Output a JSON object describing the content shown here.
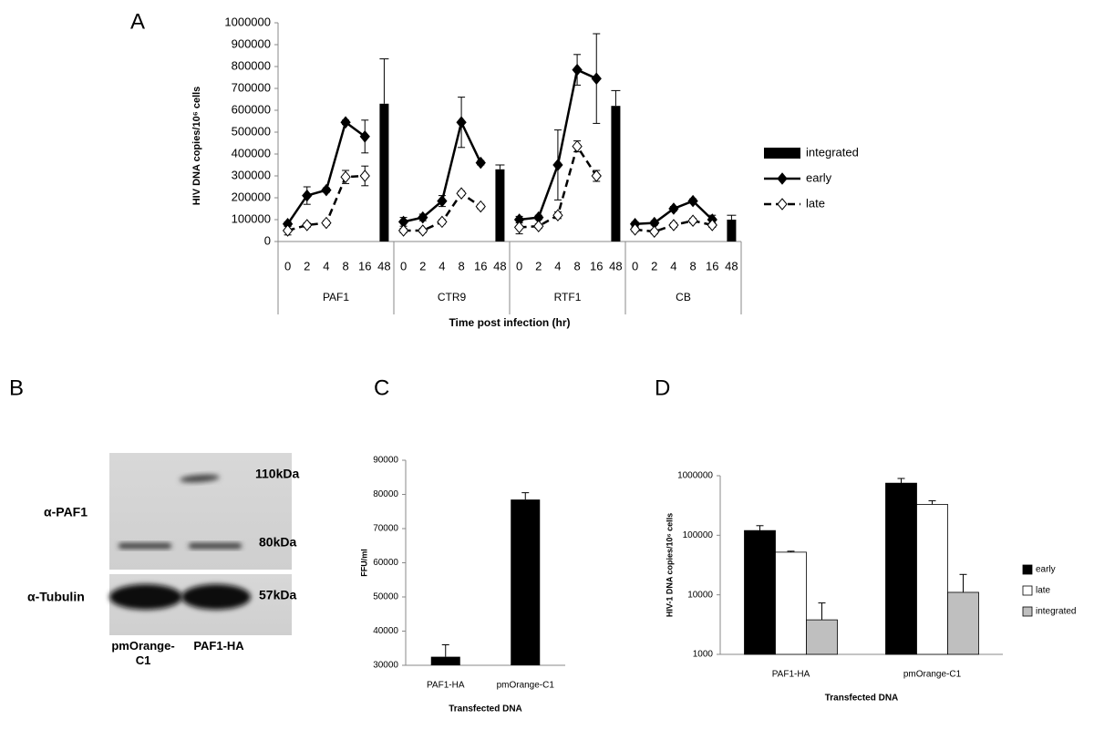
{
  "chart_data": [
    {
      "panel": "A",
      "type": "line",
      "ylabel": "HIV DNA copies/10⁶ cells",
      "xlabel": "Time post infection (hr)",
      "ylim": [
        0,
        1000000
      ],
      "yticks": [
        0,
        100000,
        200000,
        300000,
        400000,
        500000,
        600000,
        700000,
        800000,
        900000,
        1000000
      ],
      "series": [
        {
          "name": "integrated",
          "color": "#000000",
          "style": "bar"
        },
        {
          "name": "early",
          "color": "#000000",
          "style": "solid",
          "marker_fill": "#000000"
        },
        {
          "name": "late",
          "color": "#000000",
          "style": "dashed",
          "marker_fill": "#ffffff"
        }
      ],
      "groups": [
        {
          "name": "PAF1",
          "categories": [
            "0",
            "2",
            "4",
            "8",
            "16",
            "48"
          ],
          "values": [
            [
              null,
              null,
              null,
              null,
              null,
              630000
            ],
            [
              80000,
              210000,
              235000,
              545000,
              480000,
              null
            ],
            [
              50000,
              75000,
              85000,
              295000,
              300000,
              null
            ]
          ],
          "errors": [
            [
              null,
              null,
              null,
              null,
              null,
              205000
            ],
            [
              10000,
              40000,
              10000,
              10000,
              75000,
              null
            ],
            [
              20000,
              10000,
              10000,
              30000,
              45000,
              null
            ]
          ]
        },
        {
          "name": "CTR9",
          "categories": [
            "0",
            "2",
            "4",
            "8",
            "16",
            "48"
          ],
          "values": [
            [
              null,
              null,
              null,
              null,
              null,
              330000
            ],
            [
              90000,
              110000,
              185000,
              545000,
              360000,
              null
            ],
            [
              50000,
              50000,
              90000,
              220000,
              160000,
              null
            ]
          ],
          "errors": [
            [
              null,
              null,
              null,
              null,
              null,
              20000
            ],
            [
              20000,
              15000,
              25000,
              115000,
              10000,
              null
            ],
            [
              10000,
              10000,
              10000,
              10000,
              10000,
              null
            ]
          ]
        },
        {
          "name": "RTF1",
          "categories": [
            "0",
            "2",
            "4",
            "8",
            "16",
            "48"
          ],
          "values": [
            [
              null,
              null,
              null,
              null,
              null,
              620000
            ],
            [
              100000,
              110000,
              350000,
              785000,
              745000,
              null
            ],
            [
              65000,
              70000,
              120000,
              435000,
              300000,
              null
            ]
          ],
          "errors": [
            [
              null,
              null,
              null,
              null,
              null,
              70000
            ],
            [
              15000,
              10000,
              160000,
              70000,
              205000,
              null
            ],
            [
              30000,
              10000,
              15000,
              25000,
              25000,
              null
            ]
          ]
        },
        {
          "name": "CB",
          "categories": [
            "0",
            "2",
            "4",
            "8",
            "16",
            "48"
          ],
          "values": [
            [
              null,
              null,
              null,
              null,
              null,
              100000
            ],
            [
              80000,
              85000,
              150000,
              185000,
              100000,
              null
            ],
            [
              55000,
              45000,
              75000,
              95000,
              75000,
              null
            ]
          ],
          "errors": [
            [
              null,
              null,
              null,
              null,
              null,
              20000
            ],
            [
              10000,
              10000,
              10000,
              10000,
              20000,
              null
            ],
            [
              10000,
              10000,
              10000,
              10000,
              10000,
              null
            ]
          ]
        }
      ]
    },
    {
      "panel": "C",
      "type": "bar",
      "ylabel": "FFU/ml",
      "xlabel": "Transfected DNA",
      "categories": [
        "PAF1-HA",
        "pmOrange-C1"
      ],
      "values": [
        32500,
        78500
      ],
      "errors": [
        3500,
        2000
      ],
      "color": "#000000",
      "ylim": [
        30000,
        90000
      ],
      "yticks": [
        30000,
        40000,
        50000,
        60000,
        70000,
        80000,
        90000
      ]
    },
    {
      "panel": "D",
      "type": "bar",
      "log": true,
      "ylabel": "HIV-1 DNA copies/10⁶ cells",
      "xlabel": "Transfected DNA",
      "categories": [
        "PAF1-HA",
        "pmOrange-C1"
      ],
      "legend": "right",
      "series": [
        {
          "name": "early",
          "color": "#000000",
          "values": [
            120000,
            750000
          ],
          "errors": [
            25000,
            150000
          ]
        },
        {
          "name": "late",
          "color": "#ffffff",
          "values": [
            52000,
            330000
          ],
          "errors": [
            2000,
            50000
          ]
        },
        {
          "name": "integrated",
          "color": "#bfbfbf",
          "values": [
            3800,
            11000
          ],
          "errors": [
            3500,
            11000
          ]
        }
      ],
      "ylim": [
        1000,
        1000000
      ],
      "yticks": [
        1000,
        10000,
        100000,
        1000000
      ]
    }
  ],
  "blot": {
    "panel": "B",
    "rows": [
      {
        "label": "α-PAF1",
        "sizes": [
          "110kDa",
          "80kDa"
        ]
      },
      {
        "label": "α-Tubulin",
        "sizes": [
          "57kDa"
        ]
      }
    ],
    "lanes": [
      "pmOrange-C1",
      "PAF1-HA"
    ]
  }
}
